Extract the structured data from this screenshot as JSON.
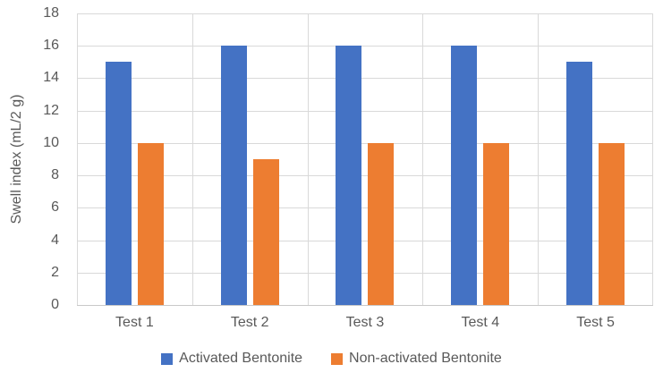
{
  "chart_data": {
    "type": "bar",
    "title": "",
    "categories": [
      "Test 1",
      "Test 2",
      "Test 3",
      "Test 4",
      "Test 5"
    ],
    "series": [
      {
        "name": "Activated Bentonite",
        "color": "#4472C4",
        "values": [
          15,
          16,
          16,
          16,
          15
        ]
      },
      {
        "name": "Non-activated Bentonite",
        "color": "#ED7D31",
        "values": [
          10,
          9,
          10,
          10,
          10
        ]
      }
    ],
    "xlabel": "",
    "ylabel": "Swell index (mL/2 g)",
    "ylim": [
      0,
      18
    ],
    "yticks": [
      0,
      2,
      4,
      6,
      8,
      10,
      12,
      14,
      16,
      18
    ],
    "grid": "horizontal gridlines every 2 units, vertical gridlines at category boundaries",
    "legend_position": "bottom-center"
  },
  "colors": {
    "series_activated": "#4472C4",
    "series_non_activated": "#ED7D31",
    "axis_text": "#595959",
    "gridline": "#D9D9D9",
    "axis_line": "#C9C9C9",
    "background": "#FFFFFF"
  }
}
